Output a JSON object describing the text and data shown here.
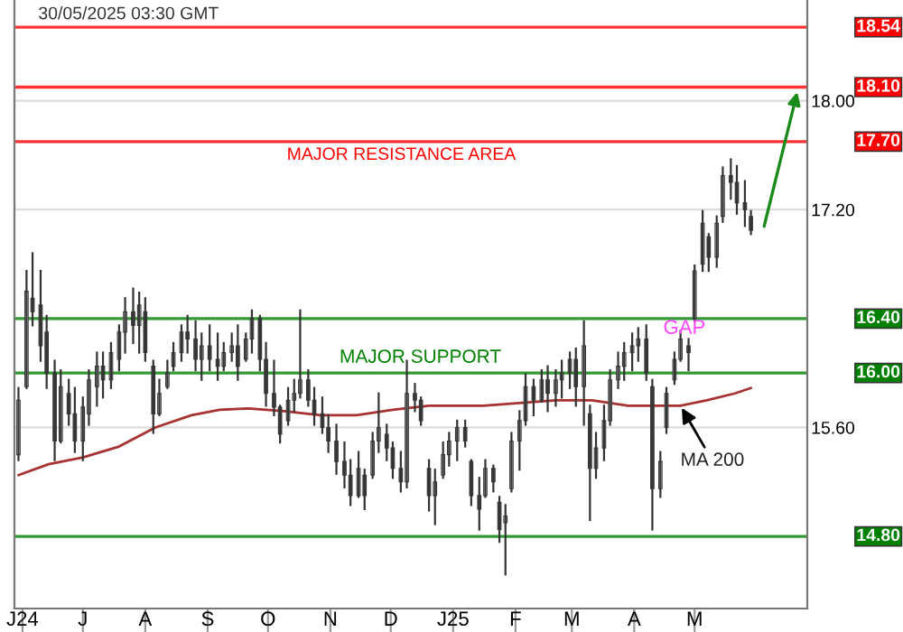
{
  "chart_data": {
    "type": "candlestick",
    "color": "#333333",
    "x": [
      "2024-05-30",
      "2024-06-03",
      "2024-06-06",
      "2024-06-10",
      "2024-06-13",
      "2024-06-17",
      "2024-06-20",
      "2024-06-24",
      "2024-06-27",
      "2024-07-01",
      "2024-07-04",
      "2024-07-08",
      "2024-07-11",
      "2024-07-15",
      "2024-07-19",
      "2024-07-22",
      "2024-07-26",
      "2024-07-29",
      "2024-08-01",
      "2024-08-05",
      "2024-08-08",
      "2024-08-12",
      "2024-08-15",
      "2024-08-19",
      "2024-08-22",
      "2024-08-26",
      "2024-08-29",
      "2024-09-02",
      "2024-09-06",
      "2024-09-09",
      "2024-09-13",
      "2024-09-16",
      "2024-09-20",
      "2024-09-23",
      "2024-09-27",
      "2024-09-30",
      "2024-10-04",
      "2024-10-07",
      "2024-10-11",
      "2024-10-14",
      "2024-10-17",
      "2024-10-21",
      "2024-10-24",
      "2024-10-28",
      "2024-10-31",
      "2024-11-04",
      "2024-11-08",
      "2024-11-11",
      "2024-11-15",
      "2024-11-18",
      "2024-11-22",
      "2024-11-25",
      "2024-11-29",
      "2024-12-02",
      "2024-12-06",
      "2024-12-09",
      "2024-12-13",
      "2024-12-16",
      "2024-12-20",
      "2024-12-23",
      "2024-12-27",
      "2024-12-30",
      "2025-01-03",
      "2025-01-07",
      "2025-01-10",
      "2025-01-14",
      "2025-01-17",
      "2025-01-21",
      "2025-01-24",
      "2025-01-27",
      "2025-01-30",
      "2025-02-03",
      "2025-02-06",
      "2025-02-10",
      "2025-02-14",
      "2025-02-17",
      "2025-02-21",
      "2025-02-24",
      "2025-02-28",
      "2025-03-03",
      "2025-03-07",
      "2025-03-10",
      "2025-03-13",
      "2025-03-17",
      "2025-03-20",
      "2025-03-24",
      "2025-03-27",
      "2025-03-31",
      "2025-04-03",
      "2025-04-07",
      "2025-04-10",
      "2025-04-14",
      "2025-04-17",
      "2025-04-21",
      "2025-04-24",
      "2025-04-28",
      "2025-05-01",
      "2025-05-05",
      "2025-05-08",
      "2025-05-12",
      "2025-05-15",
      "2025-05-19",
      "2025-05-22",
      "2025-05-26",
      "2025-05-29"
    ],
    "ohlc": [
      [
        15.4,
        15.89,
        15.36,
        15.8
      ],
      [
        15.9,
        16.75,
        15.89,
        16.6
      ],
      [
        16.55,
        16.88,
        16.35,
        16.45
      ],
      [
        16.5,
        16.75,
        16.09,
        16.2
      ],
      [
        16.3,
        16.42,
        15.89,
        16.0
      ],
      [
        16.0,
        16.09,
        15.36,
        15.5
      ],
      [
        15.5,
        16.02,
        15.49,
        15.9
      ],
      [
        15.85,
        15.95,
        15.62,
        15.7
      ],
      [
        15.7,
        15.89,
        15.42,
        15.5
      ],
      [
        15.5,
        15.82,
        15.36,
        15.75
      ],
      [
        15.7,
        16.02,
        15.62,
        15.95
      ],
      [
        15.9,
        16.15,
        15.76,
        16.05
      ],
      [
        16.05,
        16.15,
        15.82,
        15.95
      ],
      [
        15.95,
        16.22,
        15.89,
        16.15
      ],
      [
        16.1,
        16.35,
        16.02,
        16.3
      ],
      [
        16.3,
        16.55,
        16.15,
        16.45
      ],
      [
        16.45,
        16.62,
        16.22,
        16.35
      ],
      [
        16.35,
        16.59,
        16.15,
        16.5
      ],
      [
        16.45,
        16.55,
        16.09,
        16.15
      ],
      [
        16.05,
        16.09,
        15.56,
        15.7
      ],
      [
        15.7,
        15.95,
        15.69,
        15.85
      ],
      [
        15.9,
        16.09,
        15.89,
        16.0
      ],
      [
        16.05,
        16.22,
        16.02,
        16.15
      ],
      [
        16.15,
        16.35,
        16.09,
        16.3
      ],
      [
        16.3,
        16.42,
        16.15,
        16.25
      ],
      [
        16.25,
        16.38,
        16.02,
        16.1
      ],
      [
        16.1,
        16.29,
        15.95,
        16.2
      ],
      [
        16.2,
        16.35,
        16.02,
        16.1
      ],
      [
        16.1,
        16.29,
        15.95,
        16.05
      ],
      [
        16.05,
        16.22,
        16.02,
        16.15
      ],
      [
        16.15,
        16.29,
        16.09,
        16.2
      ],
      [
        16.2,
        16.35,
        15.95,
        16.05
      ],
      [
        16.1,
        16.29,
        16.09,
        16.25
      ],
      [
        16.25,
        16.46,
        16.15,
        16.4
      ],
      [
        16.4,
        16.42,
        16.02,
        16.1
      ],
      [
        16.1,
        16.22,
        15.76,
        15.85
      ],
      [
        15.85,
        16.09,
        15.69,
        15.75
      ],
      [
        15.75,
        15.76,
        15.49,
        15.55
      ],
      [
        15.65,
        15.89,
        15.62,
        15.8
      ],
      [
        15.8,
        15.95,
        15.72,
        15.85
      ],
      [
        15.85,
        16.46,
        15.82,
        15.95
      ],
      [
        15.95,
        16.02,
        15.76,
        15.8
      ],
      [
        15.8,
        15.89,
        15.62,
        15.7
      ],
      [
        15.7,
        15.82,
        15.56,
        15.6
      ],
      [
        15.6,
        15.69,
        15.42,
        15.5
      ],
      [
        15.5,
        15.62,
        15.26,
        15.35
      ],
      [
        15.35,
        15.49,
        15.16,
        15.25
      ],
      [
        15.25,
        15.36,
        15.03,
        15.1
      ],
      [
        15.1,
        15.42,
        15.09,
        15.3
      ],
      [
        15.25,
        15.29,
        15.0,
        15.1
      ],
      [
        15.25,
        15.56,
        15.23,
        15.5
      ],
      [
        15.5,
        15.85,
        15.42,
        15.6
      ],
      [
        15.55,
        15.62,
        15.36,
        15.45
      ],
      [
        15.45,
        15.49,
        15.23,
        15.3
      ],
      [
        15.3,
        15.42,
        15.13,
        15.2
      ],
      [
        15.2,
        16.09,
        15.16,
        15.85
      ],
      [
        15.85,
        15.92,
        15.72,
        15.8
      ],
      [
        15.8,
        15.82,
        15.62,
        15.65
      ],
      [
        15.3,
        15.36,
        14.99,
        15.1
      ],
      [
        15.1,
        15.29,
        14.89,
        15.2
      ],
      [
        15.25,
        15.49,
        15.23,
        15.4
      ],
      [
        15.4,
        15.56,
        15.32,
        15.5
      ],
      [
        15.5,
        15.65,
        15.36,
        15.6
      ],
      [
        15.6,
        15.65,
        15.46,
        15.5
      ],
      [
        15.35,
        15.36,
        15.03,
        15.1
      ],
      [
        15.1,
        15.23,
        14.85,
        15.0
      ],
      [
        15.1,
        15.36,
        15.09,
        15.3
      ],
      [
        15.3,
        15.32,
        15.13,
        15.2
      ],
      [
        15.05,
        15.09,
        14.76,
        14.85
      ],
      [
        14.9,
        15.03,
        14.52,
        14.95
      ],
      [
        15.15,
        15.56,
        15.13,
        15.5
      ],
      [
        15.5,
        15.72,
        15.29,
        15.65
      ],
      [
        15.65,
        15.99,
        15.62,
        15.9
      ],
      [
        15.9,
        15.95,
        15.69,
        15.8
      ],
      [
        15.8,
        16.02,
        15.79,
        15.95
      ],
      [
        15.95,
        16.05,
        15.72,
        15.85
      ],
      [
        15.85,
        16.02,
        15.76,
        15.95
      ],
      [
        15.95,
        16.09,
        15.82,
        16.0
      ],
      [
        16.0,
        16.15,
        15.89,
        16.1
      ],
      [
        16.1,
        16.18,
        15.76,
        15.9
      ],
      [
        15.9,
        16.38,
        15.62,
        16.2
      ],
      [
        15.7,
        15.76,
        14.92,
        15.3
      ],
      [
        15.3,
        15.56,
        15.23,
        15.45
      ],
      [
        15.45,
        15.76,
        15.36,
        15.65
      ],
      [
        15.65,
        16.02,
        15.62,
        15.95
      ],
      [
        15.95,
        16.15,
        15.89,
        16.05
      ],
      [
        16.05,
        16.22,
        15.95,
        16.15
      ],
      [
        16.15,
        16.29,
        16.02,
        16.2
      ],
      [
        16.2,
        16.33,
        16.09,
        16.25
      ],
      [
        16.25,
        16.35,
        15.95,
        16.0
      ],
      [
        15.9,
        15.95,
        14.85,
        15.15
      ],
      [
        15.15,
        15.42,
        15.09,
        15.35
      ],
      [
        15.6,
        15.89,
        15.56,
        15.85
      ],
      [
        15.95,
        16.15,
        15.92,
        16.1
      ],
      [
        16.1,
        16.31,
        16.09,
        16.25
      ],
      [
        16.2,
        16.25,
        16.02,
        16.15
      ],
      [
        16.4,
        16.79,
        16.38,
        16.75
      ],
      [
        16.8,
        17.19,
        16.75,
        17.1
      ],
      [
        17.0,
        17.02,
        16.75,
        16.85
      ],
      [
        16.85,
        17.15,
        16.78,
        17.1
      ],
      [
        17.15,
        17.51,
        17.11,
        17.45
      ],
      [
        17.45,
        17.57,
        17.28,
        17.4
      ],
      [
        17.4,
        17.52,
        17.17,
        17.25
      ],
      [
        17.25,
        17.41,
        17.08,
        17.2
      ],
      [
        17.15,
        17.19,
        17.02,
        17.05
      ]
    ],
    "series": [
      {
        "type": "line",
        "color": "#a83232",
        "x": [
          "2024-05-30",
          "2024-06-14",
          "2024-07-01",
          "2024-07-19",
          "2024-08-06",
          "2024-08-24",
          "2024-09-07",
          "2024-09-21",
          "2024-10-09",
          "2024-10-27",
          "2024-11-14",
          "2024-12-02",
          "2024-12-20",
          "2025-01-16",
          "2025-02-03",
          "2025-02-21",
          "2025-03-11",
          "2025-03-29",
          "2025-04-10",
          "2025-04-24",
          "2025-05-07",
          "2025-05-21",
          "2025-05-29"
        ],
        "values": [
          15.25,
          15.33,
          15.38,
          15.46,
          15.6,
          15.69,
          15.73,
          15.74,
          15.72,
          15.69,
          15.69,
          15.73,
          15.76,
          15.76,
          15.78,
          15.8,
          15.8,
          15.76,
          15.76,
          15.76,
          15.8,
          15.85,
          15.89
        ]
      }
    ],
    "xlim": [
      "2024-05-28",
      "2025-06-26"
    ],
    "xticks": [
      {
        "value": "2024-06-01",
        "label": "J24"
      },
      {
        "value": "2024-07-01",
        "label": "J"
      },
      {
        "value": "2024-08-01",
        "label": "A"
      },
      {
        "value": "2024-09-01",
        "label": "S"
      },
      {
        "value": "2024-10-01",
        "label": "O"
      },
      {
        "value": "2024-11-01",
        "label": "N"
      },
      {
        "value": "2024-12-01",
        "label": "D"
      },
      {
        "value": "2025-01-01",
        "label": "J25"
      },
      {
        "value": "2025-02-01",
        "label": "F"
      },
      {
        "value": "2025-03-01",
        "label": "M"
      },
      {
        "value": "2025-04-01",
        "label": "A"
      },
      {
        "value": "2025-05-01",
        "label": "M"
      }
    ],
    "ylim": [
      14.27,
      18.74
    ],
    "yticks": [
      {
        "value": 15.6,
        "label": "15.60"
      },
      {
        "value": 17.2,
        "label": "17.20"
      },
      {
        "value": 18.0,
        "label": "18.00"
      }
    ],
    "grid": "y",
    "ref_lines": [
      {
        "axis": "y",
        "value": 18.54,
        "label": "18.54",
        "color": "#ff0000"
      },
      {
        "axis": "y",
        "value": 18.1,
        "label": "18.10",
        "color": "#ff0000"
      },
      {
        "axis": "y",
        "value": 17.7,
        "label": "17.70",
        "color": "#ff0000"
      },
      {
        "axis": "y",
        "value": 16.4,
        "label": "16.40",
        "color": "#008000"
      },
      {
        "axis": "y",
        "value": 16.0,
        "label": "16.00",
        "color": "#008000"
      },
      {
        "axis": "y",
        "value": 14.8,
        "label": "14.80",
        "color": "#008000"
      }
    ],
    "annotations": [
      "30/05/2025 03:30 GMT",
      "MAJOR RESISTANCE AREA",
      "MAJOR SUPPORT",
      "GAP",
      {
        "text": "MA 200",
        "x": "2025-04-24",
        "y": 15.76
      }
    ]
  }
}
